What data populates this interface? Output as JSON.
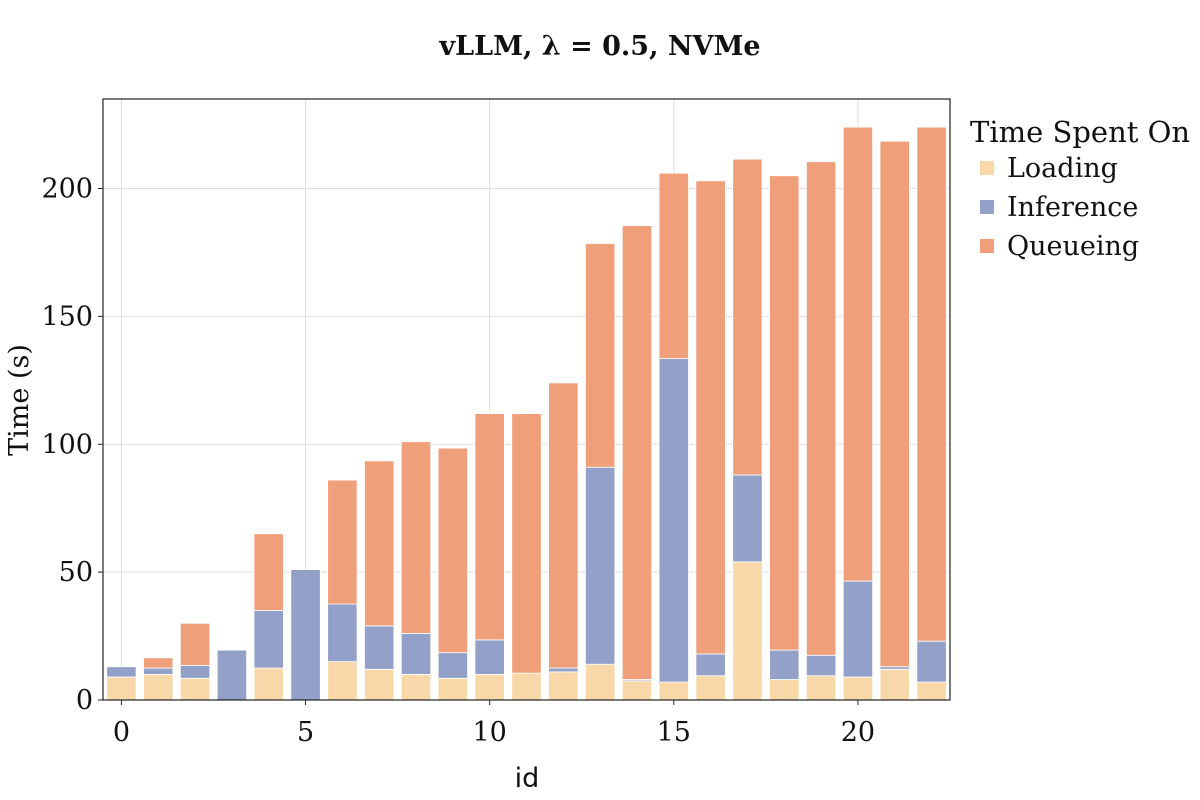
{
  "chart_data": {
    "type": "bar",
    "stacked": true,
    "title": "vLLM, λ = 0.5, NVMe",
    "xlabel": "id",
    "ylabel": "Time (s)",
    "xlim": [
      -0.5,
      22.5
    ],
    "ylim": [
      0,
      235
    ],
    "xticks": [
      0,
      5,
      10,
      15,
      20
    ],
    "yticks": [
      0,
      50,
      100,
      150,
      200
    ],
    "grid": true,
    "legend": {
      "title": "Time Spent On",
      "placement": "outside-right"
    },
    "x": [
      0,
      1,
      2,
      3,
      4,
      5,
      6,
      7,
      8,
      9,
      10,
      11,
      12,
      13,
      14,
      15,
      16,
      17,
      18,
      19,
      20,
      21,
      22
    ],
    "series": [
      {
        "name": "Loading",
        "color": "#f8d8a8",
        "values": [
          9,
          10,
          8.5,
          0,
          12.5,
          0,
          15,
          12,
          10,
          8.5,
          10,
          10.5,
          11,
          14,
          7.5,
          7,
          9.5,
          54,
          8,
          9.5,
          9,
          12,
          7
        ]
      },
      {
        "name": "Inference",
        "color": "#93a1c9",
        "values": [
          4,
          2.5,
          5,
          19.5,
          22.5,
          51,
          22.5,
          17,
          16,
          10,
          13.5,
          0,
          1.5,
          77,
          0.5,
          126.5,
          8.5,
          34,
          11.5,
          8,
          37.5,
          1,
          16
        ]
      },
      {
        "name": "Queueing",
        "color": "#f09f7b",
        "values": [
          0,
          4,
          16.5,
          0,
          30,
          0,
          48.5,
          64.5,
          75,
          80,
          88.5,
          101.5,
          111.5,
          87.5,
          177.5,
          72.5,
          185,
          123.5,
          185.5,
          193,
          177.5,
          205.5,
          201
        ]
      }
    ]
  }
}
